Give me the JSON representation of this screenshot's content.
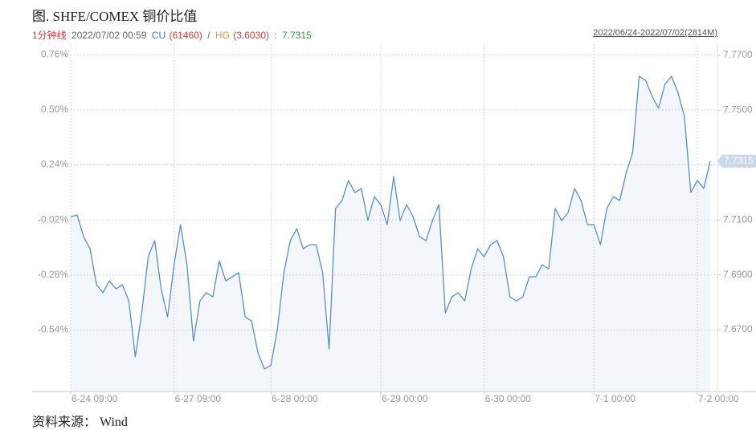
{
  "header": {
    "title": "图. SHFE/COMEX 铜价比值",
    "timeframe": "1分钟线",
    "datetime": "2022/07/02 00:59",
    "cu_label": "CU",
    "cu_value": "(61460)",
    "separator_1": "/",
    "hg_label": "HG",
    "hg_value": "(3.6030)",
    "separator_2": ":",
    "ratio": "7.7315",
    "range": "2022/06/24-2022/07/02(2814M)"
  },
  "footer": {
    "source": "资料来源： Wind"
  },
  "chart_data": {
    "type": "line",
    "grid": true,
    "categories": [
      "6-24 09:00",
      null,
      null,
      null,
      null,
      null,
      null,
      null,
      null,
      null,
      null,
      null,
      null,
      null,
      null,
      null,
      "6-27 09:00",
      null,
      null,
      null,
      null,
      null,
      null,
      null,
      null,
      null,
      null,
      null,
      null,
      null,
      null,
      "6-28 00:00",
      null,
      null,
      null,
      null,
      null,
      null,
      null,
      null,
      null,
      null,
      null,
      null,
      null,
      null,
      null,
      null,
      "6-29 00:00",
      null,
      null,
      null,
      null,
      null,
      null,
      null,
      null,
      null,
      null,
      null,
      null,
      null,
      null,
      null,
      "6-30 00:00",
      null,
      null,
      null,
      null,
      null,
      null,
      null,
      null,
      null,
      null,
      null,
      null,
      null,
      null,
      null,
      null,
      "7-1 00:00",
      null,
      null,
      null,
      null,
      null,
      null,
      null,
      null,
      null,
      null,
      null,
      null,
      null,
      null,
      null,
      "7-2 00:00",
      null,
      null
    ],
    "ylim": [
      -0.83,
      0.81
    ],
    "yticks": [
      {
        "value": 0.76,
        "label": "0.76%"
      },
      {
        "value": 0.5,
        "label": "0.50%"
      },
      {
        "value": 0.24,
        "label": "0.24%"
      },
      {
        "value": -0.02,
        "label": "-0.02%"
      },
      {
        "value": -0.28,
        "label": "-0.28%"
      },
      {
        "value": -0.54,
        "label": "-0.54%"
      }
    ],
    "y2lim": [
      7.6475,
      7.7741
    ],
    "y2ticks": [
      {
        "value": 7.77,
        "label": "7.7700"
      },
      {
        "value": 7.75,
        "label": "7.7500"
      },
      {
        "value": 7.73,
        "label": "7.7300"
      },
      {
        "value": 7.71,
        "label": "7.7100"
      },
      {
        "value": 7.69,
        "label": "7.6900"
      },
      {
        "value": 7.67,
        "label": "7.6700"
      }
    ],
    "series": [
      {
        "color": "#5b8ec4",
        "axis": "y2",
        "values": [
          7.7112,
          7.7118,
          7.7039,
          7.6995,
          7.6864,
          7.6835,
          7.6878,
          7.6849,
          7.6864,
          7.6805,
          7.6601,
          7.6761,
          7.6966,
          7.7025,
          7.6849,
          7.6747,
          7.6937,
          7.7083,
          7.6937,
          7.6659,
          7.6805,
          7.6835,
          7.682,
          7.6951,
          7.6878,
          7.6893,
          7.6908,
          7.6747,
          7.6732,
          7.6615,
          7.6557,
          7.6571,
          7.6703,
          7.6908,
          7.7025,
          7.7068,
          7.6995,
          7.701,
          7.701,
          7.6908,
          7.663,
          7.7142,
          7.7171,
          7.7244,
          7.72,
          7.7215,
          7.7098,
          7.7185,
          7.7156,
          7.7083,
          7.7258,
          7.7098,
          7.7156,
          7.7112,
          7.7039,
          7.7025,
          7.7098,
          7.7156,
          7.6761,
          7.682,
          7.6835,
          7.6805,
          7.6922,
          7.6995,
          7.6966,
          7.701,
          7.7025,
          7.6966,
          7.682,
          7.6805,
          7.682,
          7.6893,
          7.6893,
          7.6937,
          7.6922,
          7.7142,
          7.7098,
          7.7127,
          7.7215,
          7.7171,
          7.7083,
          7.7083,
          7.701,
          7.7142,
          7.7185,
          7.7171,
          7.7273,
          7.7346,
          7.7624,
          7.7609,
          7.7551,
          7.7507,
          7.7595,
          7.7624,
          7.7565,
          7.7478,
          7.72,
          7.7244,
          7.7215,
          7.7315
        ]
      }
    ]
  }
}
